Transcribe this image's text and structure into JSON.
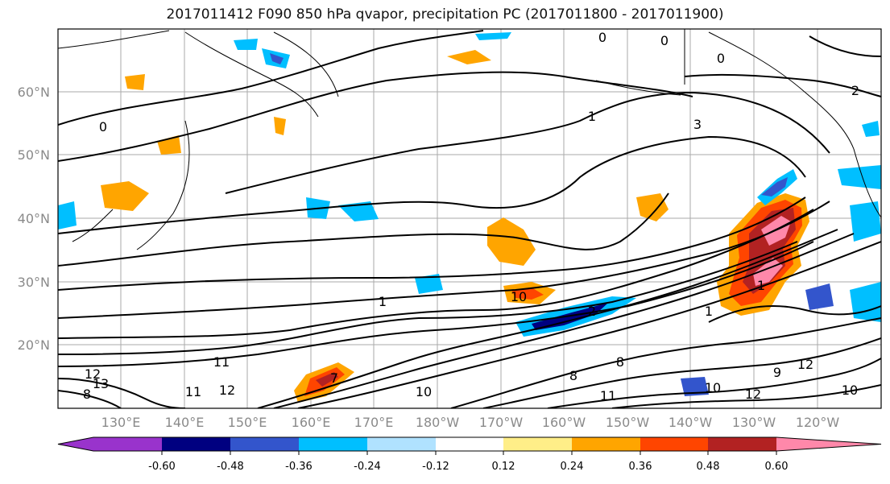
{
  "title": "2017011412 F090 850 hPa qvapor, precipitation PC (2017011800 - 2017011900)",
  "map": {
    "lat_labels": [
      "60°N",
      "50°N",
      "40°N",
      "30°N",
      "20°N"
    ],
    "lon_labels": [
      "130°E",
      "140°E",
      "150°E",
      "160°E",
      "170°E",
      "180°W",
      "170°W",
      "160°W",
      "150°W",
      "140°W",
      "130°W",
      "120°W"
    ],
    "contour_labels": [
      "0",
      "0",
      "0",
      "0",
      "2",
      "1",
      "3",
      "1",
      "10",
      "2",
      "1",
      "1",
      "11",
      "13",
      "12",
      "11",
      "12",
      "10",
      "8",
      "8",
      "9",
      "10",
      "11",
      "12",
      "10",
      "7",
      "8",
      "12"
    ]
  },
  "colorbar": {
    "colors": [
      "#9933cc",
      "#000080",
      "#3355cc",
      "#00bfff",
      "#b0e2ff",
      "#ffffff",
      "#ffee88",
      "#ffa500",
      "#ff4500",
      "#b22222",
      "#ff88aa"
    ],
    "labels": [
      "-0.60",
      "-0.48",
      "-0.36",
      "-0.24",
      "-0.12",
      "0.12",
      "0.24",
      "0.36",
      "0.48",
      "0.60"
    ]
  }
}
